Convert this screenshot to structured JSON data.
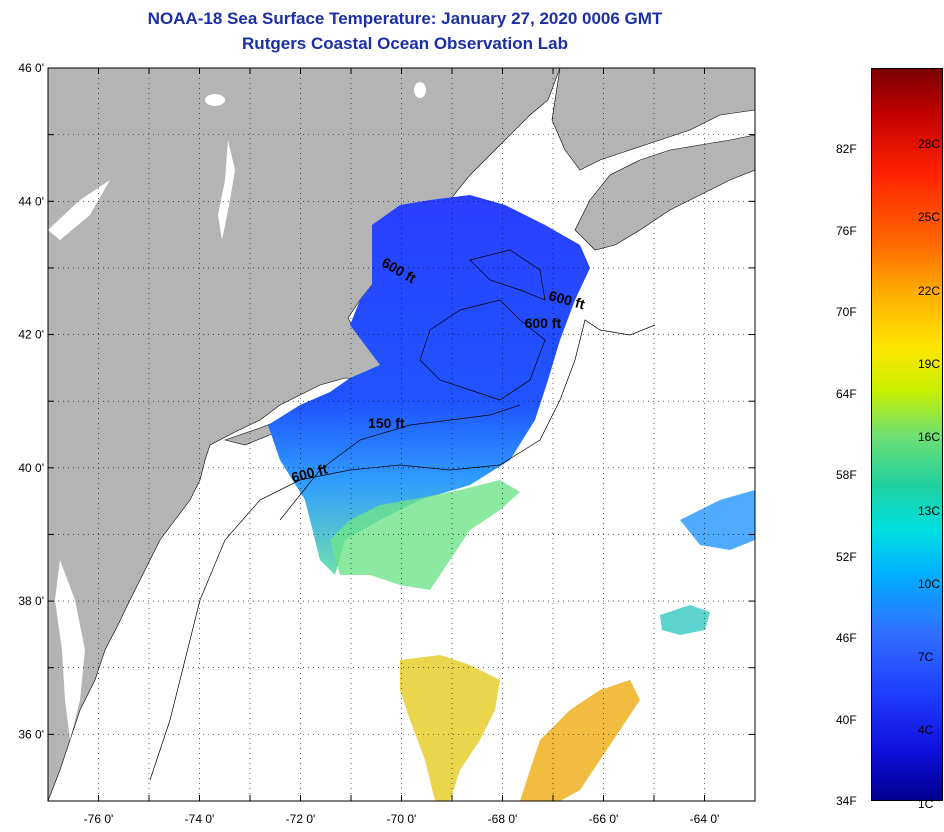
{
  "title": {
    "line1": "NOAA-18 Sea Surface Temperature:  January 27, 2020 0006 GMT",
    "line2": "Rutgers Coastal Ocean Observation Lab"
  },
  "map": {
    "lon_range": [
      -77,
      -63
    ],
    "lat_range": [
      35,
      46
    ],
    "lon_ticks": [
      {
        "value": -76,
        "label": "-76 0'"
      },
      {
        "value": -74,
        "label": "-74 0'"
      },
      {
        "value": -72,
        "label": "-72 0'"
      },
      {
        "value": -70,
        "label": "-70 0'"
      },
      {
        "value": -68,
        "label": "-68 0'"
      },
      {
        "value": -66,
        "label": "-66 0'"
      },
      {
        "value": -64,
        "label": "-64 0'"
      }
    ],
    "lat_ticks": [
      {
        "value": 46,
        "label": "46 0'"
      },
      {
        "value": 44,
        "label": "44 0'"
      },
      {
        "value": 42,
        "label": "42 0'"
      },
      {
        "value": 40,
        "label": "40 0'"
      },
      {
        "value": 38,
        "label": "38 0'"
      },
      {
        "value": 36,
        "label": "36 0'"
      }
    ],
    "contour_labels": [
      {
        "text": "600 ft",
        "lon": -70.1,
        "lat": 42.9,
        "rotate": 30
      },
      {
        "text": "600 ft",
        "lon": -66.75,
        "lat": 42.45,
        "rotate": 15
      },
      {
        "text": "600 ft",
        "lon": -67.2,
        "lat": 42.1,
        "rotate": 0
      },
      {
        "text": "150 ft",
        "lon": -70.3,
        "lat": 40.6,
        "rotate": 0
      },
      {
        "text": "600 ft",
        "lon": -71.8,
        "lat": 39.85,
        "rotate": -15
      }
    ],
    "colors": {
      "land": "#b4b4b4",
      "water": "#ffffff"
    }
  },
  "colorbar": {
    "min_f": 34,
    "max_f": 88,
    "f_labels": [
      {
        "value": 82,
        "label": "82F"
      },
      {
        "value": 76,
        "label": "76F"
      },
      {
        "value": 70,
        "label": "70F"
      },
      {
        "value": 64,
        "label": "64F"
      },
      {
        "value": 58,
        "label": "58F"
      },
      {
        "value": 52,
        "label": "52F"
      },
      {
        "value": 46,
        "label": "46F"
      },
      {
        "value": 40,
        "label": "40F"
      },
      {
        "value": 34,
        "label": "34F"
      }
    ],
    "c_labels": [
      {
        "value": 28,
        "label": "28C"
      },
      {
        "value": 25,
        "label": "25C"
      },
      {
        "value": 22,
        "label": "22C"
      },
      {
        "value": 19,
        "label": "19C"
      },
      {
        "value": 16,
        "label": "16C"
      },
      {
        "value": 13,
        "label": "13C"
      },
      {
        "value": 10,
        "label": "10C"
      },
      {
        "value": 7,
        "label": "7C"
      },
      {
        "value": 4,
        "label": "4C"
      },
      {
        "value": 1,
        "label": "1C"
      }
    ]
  }
}
